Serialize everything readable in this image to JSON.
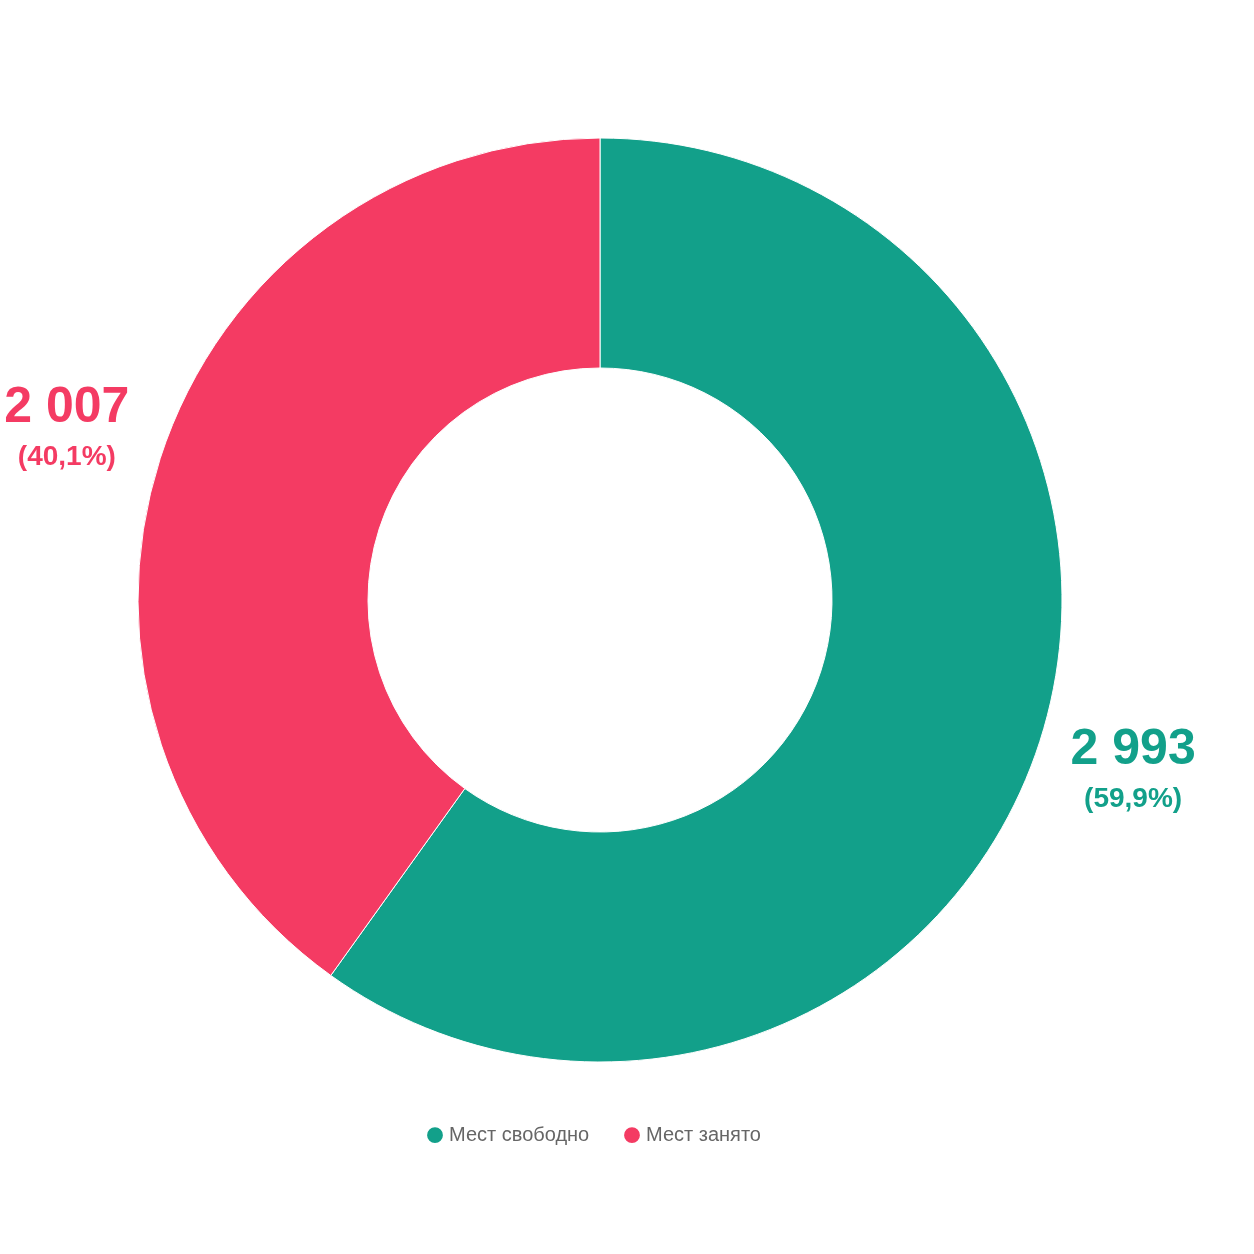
{
  "chart_data": {
    "type": "donut",
    "categories": [
      "Мест свободно",
      "Мест занято"
    ],
    "values": [
      59.9,
      40.1
    ],
    "colors": [
      "#12a08a",
      "#f43b63"
    ],
    "value_labels": [
      "2 993\n(59,9%)",
      "2 007\n(40,1%)"
    ],
    "legend": "bottom"
  }
}
